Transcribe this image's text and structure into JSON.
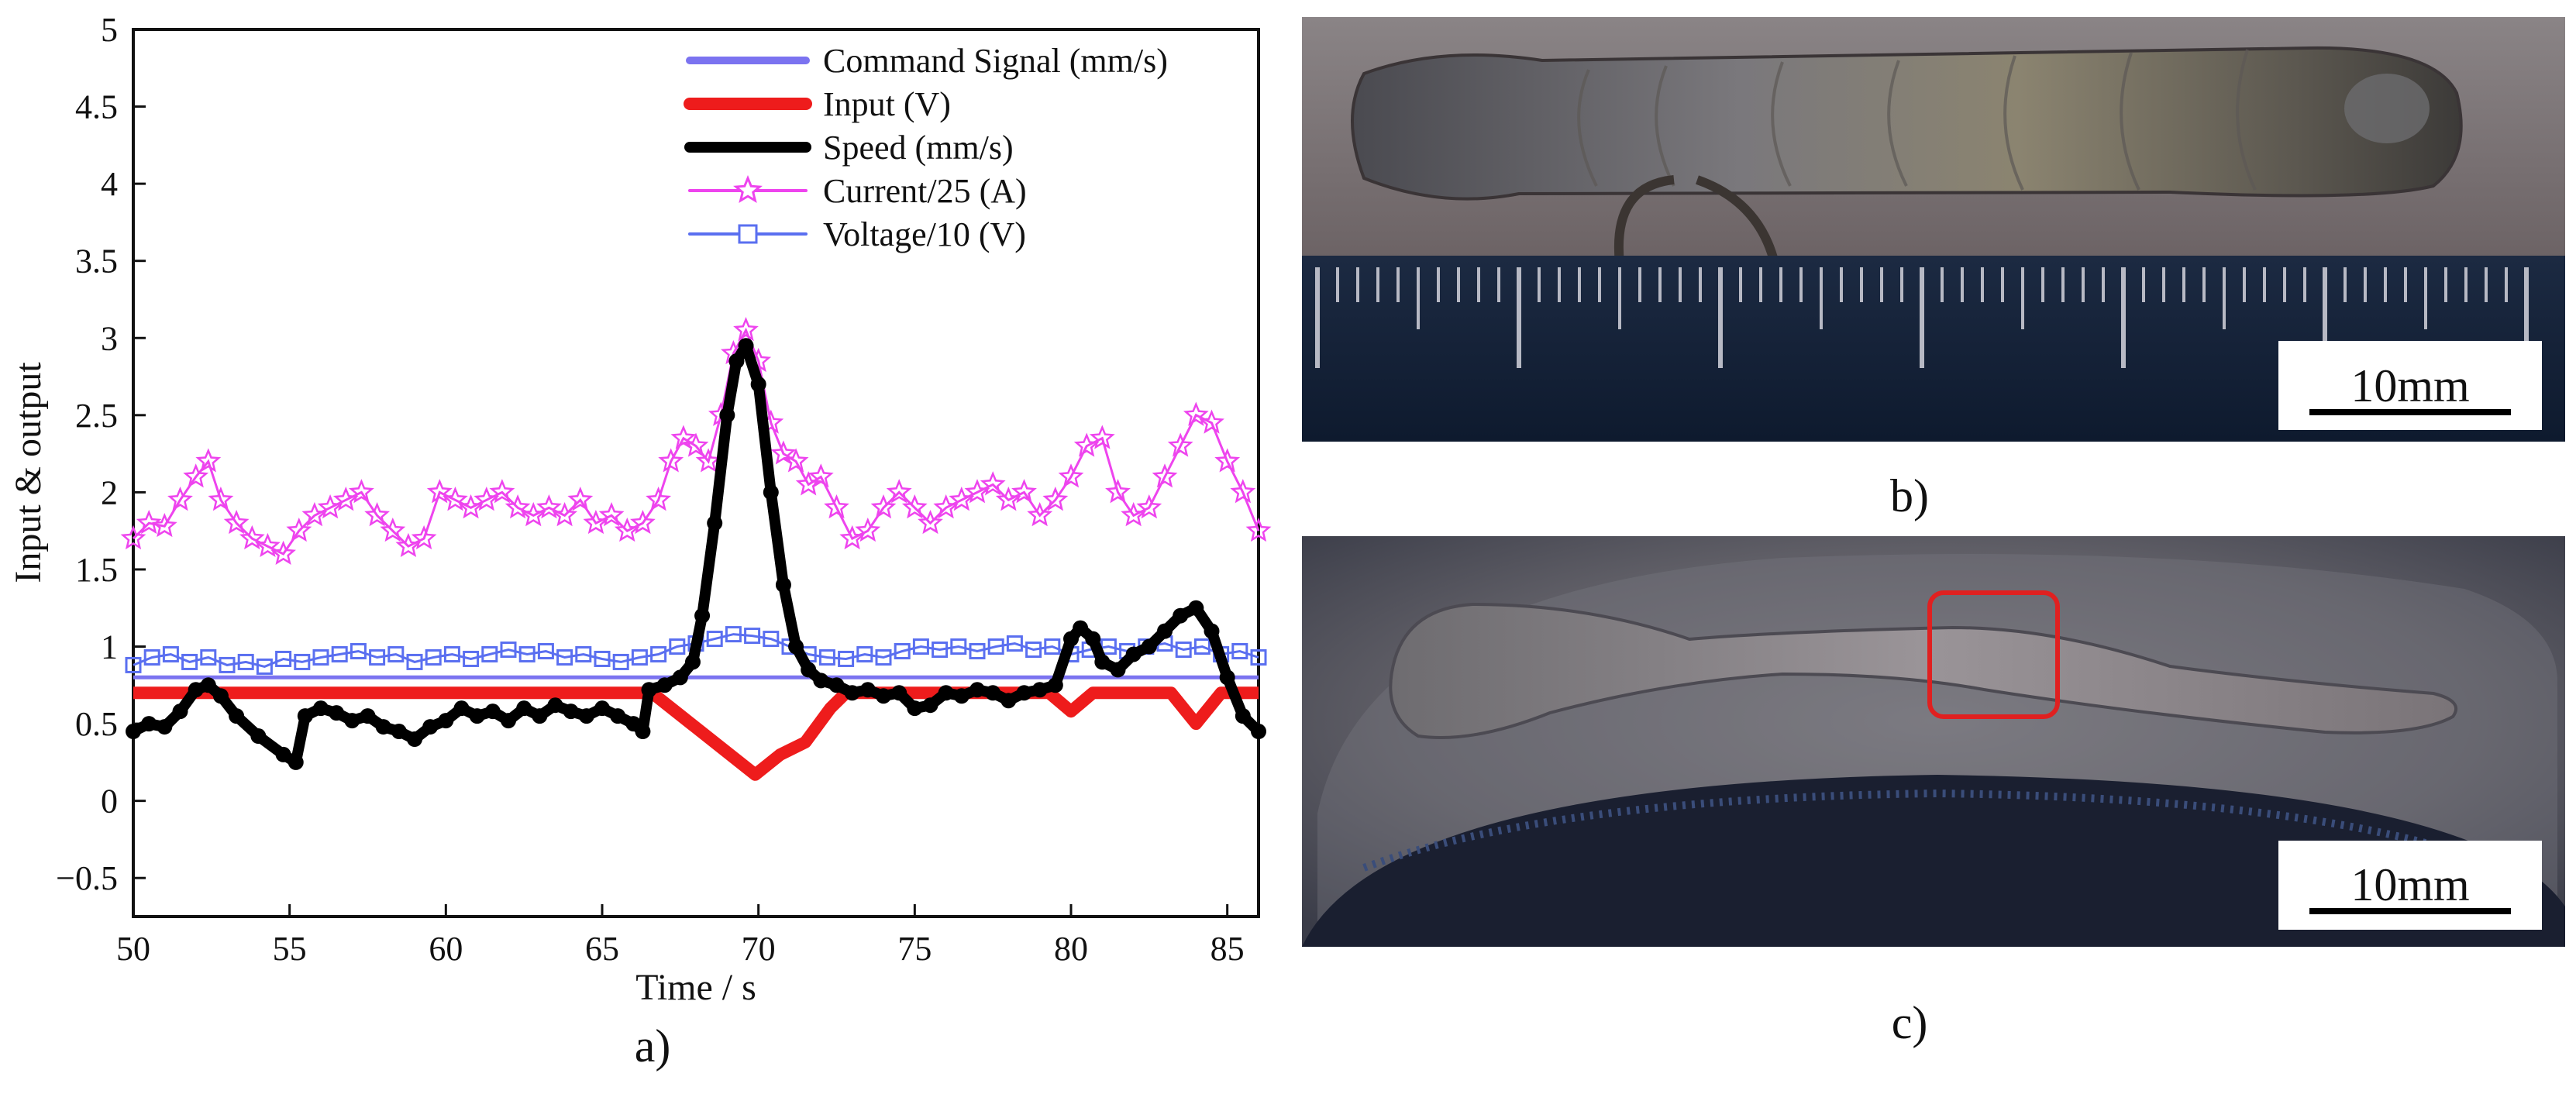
{
  "chart_data": {
    "type": "line",
    "xlabel": "Time / s",
    "ylabel": "Input & output",
    "xlim": [
      50,
      86
    ],
    "ylim": [
      -0.75,
      5
    ],
    "xticks": [
      50,
      55,
      60,
      65,
      70,
      75,
      80,
      85
    ],
    "yticks": [
      -0.5,
      0,
      0.5,
      1,
      1.5,
      2,
      2.5,
      3,
      3.5,
      4,
      4.5,
      5
    ],
    "ytick_labels": [
      "−0.5",
      "0",
      "0.5",
      "1",
      "1.5",
      "2",
      "2.5",
      "3",
      "3.5",
      "4",
      "4.5",
      "5"
    ],
    "legend_position": "top-right",
    "series": [
      {
        "name": "Command Signal (mm/s)",
        "color": "#7b73f0",
        "style": "line",
        "x": [
          50,
          86
        ],
        "y": [
          0.8,
          0.8
        ]
      },
      {
        "name": "Input (V)",
        "color": "#ee1c1c",
        "style": "line",
        "x": [
          50,
          66.6,
          69.9,
          70.7,
          71.5,
          72.3,
          72.8,
          79.3,
          80.0,
          80.7,
          83.2,
          84.0,
          84.8,
          86
        ],
        "y": [
          0.7,
          0.7,
          0.17,
          0.3,
          0.38,
          0.6,
          0.7,
          0.7,
          0.58,
          0.7,
          0.7,
          0.5,
          0.7,
          0.7
        ]
      },
      {
        "name": "Speed (mm/s)",
        "color": "#000000",
        "style": "thick-markers",
        "x": [
          50,
          50.5,
          51,
          51.5,
          52,
          52.4,
          52.8,
          53.3,
          54,
          54.8,
          55.2,
          55.5,
          56,
          56.5,
          57,
          57.5,
          58,
          58.5,
          59,
          59.5,
          60,
          60.5,
          61,
          61.5,
          62,
          62.5,
          63,
          63.5,
          64,
          64.5,
          65,
          65.5,
          66,
          66.3,
          66.5,
          67,
          67.5,
          67.9,
          68.2,
          68.6,
          69,
          69.3,
          69.6,
          70,
          70.4,
          70.8,
          71.2,
          71.6,
          72,
          72.5,
          73,
          73.5,
          74,
          74.5,
          75,
          75.5,
          76,
          76.5,
          77,
          77.5,
          78,
          78.5,
          79,
          79.5,
          80,
          80.3,
          80.7,
          81,
          81.5,
          82,
          82.5,
          83,
          83.5,
          84,
          84.5,
          85,
          85.5,
          86
        ],
        "y": [
          0.45,
          0.5,
          0.48,
          0.58,
          0.72,
          0.75,
          0.68,
          0.55,
          0.42,
          0.3,
          0.25,
          0.55,
          0.6,
          0.57,
          0.52,
          0.55,
          0.48,
          0.45,
          0.4,
          0.48,
          0.52,
          0.6,
          0.55,
          0.58,
          0.52,
          0.6,
          0.55,
          0.62,
          0.58,
          0.55,
          0.6,
          0.55,
          0.5,
          0.45,
          0.72,
          0.75,
          0.8,
          0.9,
          1.2,
          1.8,
          2.5,
          2.85,
          2.95,
          2.7,
          2.0,
          1.4,
          1.0,
          0.85,
          0.78,
          0.75,
          0.7,
          0.72,
          0.68,
          0.7,
          0.6,
          0.62,
          0.7,
          0.68,
          0.72,
          0.7,
          0.65,
          0.7,
          0.72,
          0.75,
          1.05,
          1.12,
          1.05,
          0.9,
          0.85,
          0.95,
          1.0,
          1.1,
          1.2,
          1.25,
          1.1,
          0.8,
          0.55,
          0.45
        ]
      },
      {
        "name": "Current/25 (A)",
        "color": "#ee44ee",
        "style": "star-markers",
        "x": [
          50,
          50.5,
          51,
          51.5,
          52,
          52.4,
          52.8,
          53.3,
          53.8,
          54.3,
          54.8,
          55.3,
          55.8,
          56.3,
          56.8,
          57.3,
          57.8,
          58.3,
          58.8,
          59.3,
          59.8,
          60.3,
          60.8,
          61.3,
          61.8,
          62.3,
          62.8,
          63.3,
          63.8,
          64.3,
          64.8,
          65.3,
          65.8,
          66.3,
          66.8,
          67.2,
          67.6,
          68,
          68.4,
          68.8,
          69.2,
          69.6,
          70,
          70.4,
          70.8,
          71.2,
          71.6,
          72,
          72.5,
          73,
          73.5,
          74,
          74.5,
          75,
          75.5,
          76,
          76.5,
          77,
          77.5,
          78,
          78.5,
          79,
          79.5,
          80,
          80.5,
          81,
          81.5,
          82,
          82.5,
          83,
          83.5,
          84,
          84.5,
          85,
          85.5,
          86
        ],
        "y": [
          1.7,
          1.8,
          1.78,
          1.95,
          2.1,
          2.2,
          1.95,
          1.8,
          1.7,
          1.65,
          1.6,
          1.75,
          1.85,
          1.9,
          1.95,
          2.0,
          1.85,
          1.75,
          1.65,
          1.7,
          2.0,
          1.95,
          1.9,
          1.95,
          2.0,
          1.9,
          1.85,
          1.9,
          1.85,
          1.95,
          1.8,
          1.85,
          1.75,
          1.8,
          1.95,
          2.2,
          2.35,
          2.3,
          2.2,
          2.5,
          2.9,
          3.05,
          2.85,
          2.45,
          2.25,
          2.2,
          2.05,
          2.1,
          1.9,
          1.7,
          1.75,
          1.9,
          2.0,
          1.9,
          1.8,
          1.9,
          1.95,
          2.0,
          2.05,
          1.95,
          2.0,
          1.85,
          1.95,
          2.1,
          2.3,
          2.35,
          2.0,
          1.85,
          1.9,
          2.1,
          2.3,
          2.5,
          2.45,
          2.2,
          2.0,
          1.75
        ]
      },
      {
        "name": "Voltage/10 (V)",
        "color": "#5a6ff0",
        "style": "square-markers",
        "x": [
          50,
          50.6,
          51.2,
          51.8,
          52.4,
          53,
          53.6,
          54.2,
          54.8,
          55.4,
          56,
          56.6,
          57.2,
          57.8,
          58.4,
          59,
          59.6,
          60.2,
          60.8,
          61.4,
          62,
          62.6,
          63.2,
          63.8,
          64.4,
          65,
          65.6,
          66.2,
          66.8,
          67.4,
          68,
          68.6,
          69.2,
          69.8,
          70.4,
          71,
          71.6,
          72.2,
          72.8,
          73.4,
          74,
          74.6,
          75.2,
          75.8,
          76.4,
          77,
          77.6,
          78.2,
          78.8,
          79.4,
          80,
          80.6,
          81.2,
          81.8,
          82.4,
          83,
          83.6,
          84.2,
          84.8,
          85.4,
          86
        ],
        "y": [
          0.88,
          0.93,
          0.95,
          0.9,
          0.93,
          0.88,
          0.9,
          0.87,
          0.92,
          0.9,
          0.93,
          0.95,
          0.97,
          0.93,
          0.95,
          0.9,
          0.93,
          0.95,
          0.92,
          0.95,
          0.98,
          0.95,
          0.97,
          0.93,
          0.95,
          0.92,
          0.9,
          0.93,
          0.95,
          1.0,
          1.02,
          1.05,
          1.08,
          1.07,
          1.05,
          1.0,
          0.95,
          0.93,
          0.92,
          0.95,
          0.93,
          0.97,
          1.0,
          0.98,
          1.0,
          0.97,
          1.0,
          1.02,
          0.98,
          1.0,
          0.95,
          0.98,
          1.0,
          0.97,
          1.0,
          1.02,
          0.98,
          1.0,
          0.95,
          0.97,
          0.93
        ]
      }
    ]
  },
  "panels": {
    "a_label": "a)",
    "b_label": "b)",
    "c_label": "c)",
    "b_scale_bar": "10mm",
    "c_scale_bar": "10mm"
  },
  "colors": {
    "axis": "#111111",
    "highlight_box": "#e02020",
    "ruler_blue": "#14243e",
    "plate_bg": "#6e6a6b"
  }
}
